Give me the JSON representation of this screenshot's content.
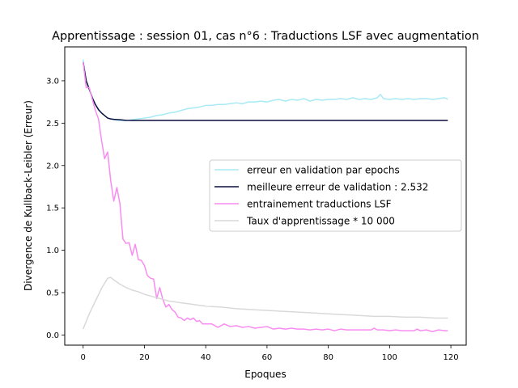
{
  "chart_data": {
    "type": "line",
    "title": "Apprentissage : session 01, cas n°6 : Traductions LSF avec augmentation",
    "xlabel": "Epoques",
    "ylabel": "Divergence de Kullback-Leibler (Erreur)",
    "xlim": [
      -6,
      125
    ],
    "ylim": [
      -0.12,
      3.4
    ],
    "xticks": [
      0,
      20,
      40,
      60,
      80,
      100,
      120
    ],
    "yticks": [
      0.0,
      0.5,
      1.0,
      1.5,
      2.0,
      2.5,
      3.0
    ],
    "xtick_labels": [
      "0",
      "20",
      "40",
      "60",
      "80",
      "100",
      "120"
    ],
    "ytick_labels": [
      "0.0",
      "0.5",
      "1.0",
      "1.5",
      "2.0",
      "2.5",
      "3.0"
    ],
    "grid": false,
    "legend_placement": "center-right",
    "series": [
      {
        "name": "erreur en validation par epochs",
        "color": "#a8eaf5",
        "x": [
          0,
          1,
          2,
          3,
          4,
          5,
          6,
          7,
          8,
          9,
          10,
          12,
          14,
          16,
          18,
          20,
          22,
          24,
          26,
          28,
          30,
          32,
          34,
          36,
          38,
          40,
          42,
          44,
          46,
          48,
          50,
          52,
          54,
          56,
          58,
          60,
          62,
          64,
          66,
          68,
          70,
          72,
          74,
          76,
          78,
          80,
          82,
          84,
          86,
          88,
          90,
          92,
          94,
          96,
          97,
          98,
          100,
          102,
          104,
          106,
          108,
          110,
          112,
          114,
          116,
          118,
          119
        ],
        "y": [
          3.25,
          3.0,
          2.9,
          2.8,
          2.72,
          2.66,
          2.62,
          2.59,
          2.56,
          2.55,
          2.54,
          2.53,
          2.53,
          2.54,
          2.55,
          2.56,
          2.57,
          2.59,
          2.6,
          2.62,
          2.63,
          2.65,
          2.67,
          2.68,
          2.69,
          2.71,
          2.71,
          2.72,
          2.72,
          2.73,
          2.74,
          2.73,
          2.75,
          2.75,
          2.76,
          2.75,
          2.77,
          2.78,
          2.76,
          2.78,
          2.77,
          2.79,
          2.76,
          2.78,
          2.77,
          2.78,
          2.78,
          2.79,
          2.78,
          2.8,
          2.78,
          2.79,
          2.78,
          2.8,
          2.84,
          2.79,
          2.78,
          2.79,
          2.78,
          2.79,
          2.78,
          2.79,
          2.79,
          2.78,
          2.79,
          2.8,
          2.78
        ]
      },
      {
        "name": "meilleure erreur de validation : 2.532",
        "color": "#0d0d40",
        "x": [
          0,
          1,
          2,
          3,
          4,
          5,
          6,
          7,
          8,
          9,
          10,
          12,
          14,
          16,
          20,
          40,
          60,
          80,
          100,
          119
        ],
        "y": [
          3.22,
          3.0,
          2.9,
          2.8,
          2.72,
          2.66,
          2.62,
          2.59,
          2.56,
          2.55,
          2.545,
          2.54,
          2.533,
          2.532,
          2.532,
          2.532,
          2.532,
          2.532,
          2.532,
          2.532
        ]
      },
      {
        "name": "entrainement traductions LSF",
        "color": "#f98cf0",
        "x": [
          0,
          1,
          2,
          3,
          4,
          5,
          6,
          7,
          8,
          9,
          10,
          11,
          12,
          13,
          14,
          15,
          16,
          17,
          18,
          19,
          20,
          21,
          22,
          23,
          24,
          25,
          26,
          27,
          28,
          29,
          30,
          31,
          32,
          33,
          34,
          35,
          36,
          37,
          38,
          39,
          40,
          42,
          44,
          46,
          48,
          50,
          52,
          54,
          56,
          58,
          60,
          62,
          64,
          66,
          68,
          70,
          72,
          74,
          76,
          78,
          80,
          82,
          84,
          86,
          88,
          90,
          92,
          94,
          95,
          96,
          98,
          100,
          102,
          104,
          106,
          108,
          109,
          110,
          112,
          114,
          116,
          118,
          119
        ],
        "y": [
          3.22,
          2.92,
          2.92,
          2.78,
          2.65,
          2.55,
          2.3,
          2.08,
          2.16,
          1.82,
          1.58,
          1.74,
          1.55,
          1.13,
          1.08,
          1.09,
          0.94,
          1.07,
          0.89,
          0.88,
          0.82,
          0.7,
          0.67,
          0.66,
          0.43,
          0.56,
          0.42,
          0.33,
          0.36,
          0.3,
          0.27,
          0.21,
          0.2,
          0.17,
          0.2,
          0.18,
          0.2,
          0.16,
          0.17,
          0.13,
          0.13,
          0.13,
          0.09,
          0.13,
          0.1,
          0.11,
          0.09,
          0.1,
          0.08,
          0.09,
          0.1,
          0.07,
          0.08,
          0.07,
          0.08,
          0.07,
          0.07,
          0.06,
          0.07,
          0.06,
          0.07,
          0.05,
          0.07,
          0.06,
          0.06,
          0.06,
          0.06,
          0.06,
          0.08,
          0.06,
          0.06,
          0.05,
          0.06,
          0.05,
          0.05,
          0.05,
          0.07,
          0.05,
          0.06,
          0.04,
          0.06,
          0.05,
          0.05
        ]
      },
      {
        "name": "Taux d'apprentissage * 10 000",
        "color": "#d9d9d9",
        "x": [
          0,
          2,
          4,
          6,
          8,
          9,
          10,
          12,
          14,
          16,
          18,
          20,
          22,
          24,
          26,
          28,
          30,
          32,
          34,
          36,
          38,
          40,
          45,
          50,
          55,
          60,
          65,
          70,
          75,
          80,
          85,
          90,
          95,
          100,
          105,
          110,
          115,
          119
        ],
        "y": [
          0.07,
          0.25,
          0.4,
          0.55,
          0.67,
          0.68,
          0.65,
          0.6,
          0.56,
          0.53,
          0.51,
          0.48,
          0.46,
          0.44,
          0.42,
          0.4,
          0.39,
          0.38,
          0.37,
          0.36,
          0.35,
          0.34,
          0.33,
          0.31,
          0.3,
          0.29,
          0.28,
          0.27,
          0.26,
          0.25,
          0.24,
          0.23,
          0.22,
          0.22,
          0.21,
          0.21,
          0.2,
          0.2
        ]
      }
    ]
  }
}
